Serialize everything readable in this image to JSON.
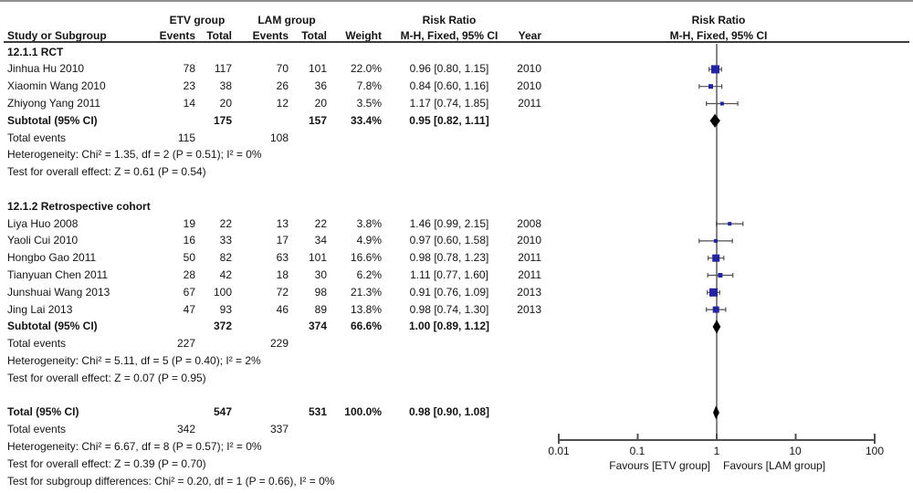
{
  "header": {
    "group1": "ETV group",
    "group2": "LAM group",
    "effect_col_title": "Risk Ratio",
    "study": "Study or Subgroup",
    "events": "Events",
    "total": "Total",
    "weight": "Weight",
    "ci": "M-H, Fixed, 95% CI",
    "year": "Year",
    "plot_title": "Risk Ratio",
    "plot_subtitle": "M-H, Fixed, 95% CI"
  },
  "chart_data": {
    "type": "forest",
    "effect_measure": "Risk Ratio, M-H, Fixed, 95% CI",
    "x_axis": {
      "scale": "log",
      "ticks": [
        0.01,
        0.1,
        1,
        10,
        100
      ],
      "labels": [
        "0.01",
        "0.1",
        "1",
        "10",
        "100"
      ],
      "left_label": "Favours [ETV group]",
      "right_label": "Favours [LAM group]"
    },
    "rows": [
      {
        "type": "subgroup",
        "label": "12.1.1 RCT"
      },
      {
        "type": "study",
        "label": "Jinhua Hu 2010",
        "e1": "78",
        "t1": "117",
        "e2": "70",
        "t2": "101",
        "weight": "22.0%",
        "ci": "0.96 [0.80, 1.15]",
        "year": "2010",
        "rr": 0.96,
        "lo": 0.8,
        "hi": 1.15,
        "w": 22.0
      },
      {
        "type": "study",
        "label": "Xiaomin Wang 2010",
        "e1": "23",
        "t1": "38",
        "e2": "26",
        "t2": "36",
        "weight": "7.8%",
        "ci": "0.84 [0.60, 1.16]",
        "year": "2010",
        "rr": 0.84,
        "lo": 0.6,
        "hi": 1.16,
        "w": 7.8
      },
      {
        "type": "study",
        "label": "Zhiyong Yang 2011",
        "e1": "14",
        "t1": "20",
        "e2": "12",
        "t2": "20",
        "weight": "3.5%",
        "ci": "1.17 [0.74, 1.85]",
        "year": "2011",
        "rr": 1.17,
        "lo": 0.74,
        "hi": 1.85,
        "w": 3.5
      },
      {
        "type": "subtotal",
        "label": "Subtotal (95% CI)",
        "t1": "175",
        "t2": "157",
        "weight": "33.4%",
        "ci": "0.95 [0.82, 1.11]",
        "rr": 0.95,
        "lo": 0.82,
        "hi": 1.11
      },
      {
        "type": "events",
        "label": "Total events",
        "e1": "115",
        "e2": "108"
      },
      {
        "type": "note",
        "label": "Heterogeneity: Chi² = 1.35, df = 2 (P = 0.51); I² = 0%"
      },
      {
        "type": "note",
        "label": "Test for overall effect: Z = 0.61 (P = 0.54)"
      },
      {
        "type": "spacer"
      },
      {
        "type": "subgroup",
        "label": "12.1.2 Retrospective cohort"
      },
      {
        "type": "study",
        "label": "Liya Huo 2008",
        "e1": "19",
        "t1": "22",
        "e2": "13",
        "t2": "22",
        "weight": "3.8%",
        "ci": "1.46 [0.99, 2.15]",
        "year": "2008",
        "rr": 1.46,
        "lo": 0.99,
        "hi": 2.15,
        "w": 3.8
      },
      {
        "type": "study",
        "label": "Yaoli Cui 2010",
        "e1": "16",
        "t1": "33",
        "e2": "17",
        "t2": "34",
        "weight": "4.9%",
        "ci": "0.97 [0.60, 1.58]",
        "year": "2010",
        "rr": 0.97,
        "lo": 0.6,
        "hi": 1.58,
        "w": 4.9
      },
      {
        "type": "study",
        "label": "Hongbo Gao 2011",
        "e1": "50",
        "t1": "82",
        "e2": "63",
        "t2": "101",
        "weight": "16.6%",
        "ci": "0.98 [0.78, 1.23]",
        "year": "2011",
        "rr": 0.98,
        "lo": 0.78,
        "hi": 1.23,
        "w": 16.6
      },
      {
        "type": "study",
        "label": "Tianyuan Chen 2011",
        "e1": "28",
        "t1": "42",
        "e2": "18",
        "t2": "30",
        "weight": "6.2%",
        "ci": "1.11 [0.77, 1.60]",
        "year": "2011",
        "rr": 1.11,
        "lo": 0.77,
        "hi": 1.6,
        "w": 6.2
      },
      {
        "type": "study",
        "label": "Junshuai Wang 2013",
        "e1": "67",
        "t1": "100",
        "e2": "72",
        "t2": "98",
        "weight": "21.3%",
        "ci": "0.91 [0.76, 1.09]",
        "year": "2013",
        "rr": 0.91,
        "lo": 0.76,
        "hi": 1.09,
        "w": 21.3
      },
      {
        "type": "study",
        "label": "Jing Lai 2013",
        "e1": "47",
        "t1": "93",
        "e2": "46",
        "t2": "89",
        "weight": "13.8%",
        "ci": "0.98 [0.74, 1.30]",
        "year": "2013",
        "rr": 0.98,
        "lo": 0.74,
        "hi": 1.3,
        "w": 13.8
      },
      {
        "type": "subtotal",
        "label": "Subtotal (95% CI)",
        "t1": "372",
        "t2": "374",
        "weight": "66.6%",
        "ci": "1.00 [0.89, 1.12]",
        "rr": 1.0,
        "lo": 0.89,
        "hi": 1.12
      },
      {
        "type": "events",
        "label": "Total events",
        "e1": "227",
        "e2": "229"
      },
      {
        "type": "note",
        "label": "Heterogeneity: Chi² = 5.11, df = 5 (P = 0.40); I² = 2%"
      },
      {
        "type": "note",
        "label": "Test for overall effect: Z = 0.07 (P = 0.95)"
      },
      {
        "type": "spacer"
      },
      {
        "type": "total",
        "label": "Total (95% CI)",
        "t1": "547",
        "t2": "531",
        "weight": "100.0%",
        "ci": "0.98 [0.90, 1.08]",
        "rr": 0.98,
        "lo": 0.9,
        "hi": 1.08
      },
      {
        "type": "events",
        "label": "Total events",
        "e1": "342",
        "e2": "337"
      },
      {
        "type": "note",
        "label": "Heterogeneity: Chi² = 6.67, df = 8 (P = 0.57); I² = 0%"
      },
      {
        "type": "note",
        "label": "Test for overall effect: Z = 0.39 (P = 0.70)"
      },
      {
        "type": "note",
        "label": "Test for subgroup differences: Chi² = 0.20, df = 1 (P = 0.66), I² = 0%"
      }
    ]
  },
  "colors": {
    "marker": "#2323a3",
    "diamond": "#000000",
    "ci_line": "#4f4f4f",
    "axis": "#4f4f4f",
    "null_line": "#858585"
  }
}
